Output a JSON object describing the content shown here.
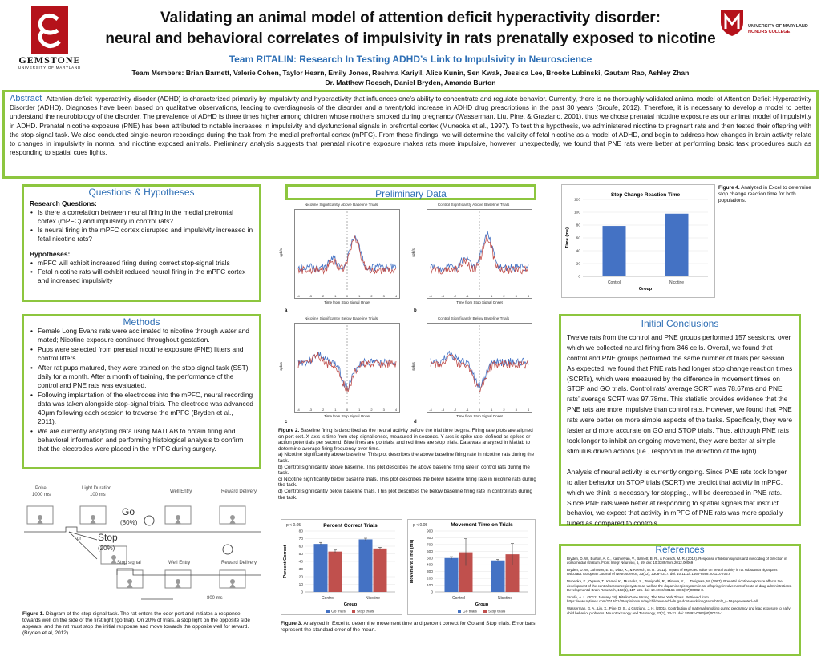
{
  "header": {
    "title_line1": "Validating an animal model of attention deficit hyperactivity disorder:",
    "title_line2": "neural and behavioral correlates of impulsivity in rats prenatally exposed to nicotine",
    "team": "Team RITALIN: Research In Testing ADHD’s Link to Impulsivity in Neuroscience",
    "members_line1": "Team Members: Brian Barnett, Valerie Cohen, Taylor Hearn, Emily Jones, Reshma Kariyil, Alice Kunin, Sen Kwak, Jessica Lee, Brooke Lubinski, Gautam Rao, Ashley Zhan",
    "members_line2": "Dr. Matthew Roesch, Daniel Bryden, Amanda Burton",
    "left_logo_text": "GEMSTONE",
    "left_logo_sub": "UNIVERSITY OF MARYLAND",
    "right_logo_line1": "UNIVERSITY OF MARYLAND",
    "right_logo_line2": "HONORS COLLEGE"
  },
  "abstract": {
    "label": "Abstract",
    "text": "Attention-deficit hyperactivity disoder (ADHD) is characterized primarily by impulsivity and hyperactivity that influences one’s ability to concentrate and regulate behavior. Currently, there is no thoroughly validated animal model of Attention Deficit Hyperactivity Disorder (ADHD). Diagnoses have been based on qualitative observations, leading to overdiagnosis of the disorder and a twentyfold increase in ADHD drug prescriptions in the past 30 years (Sroufe, 2012). Therefore, it is necessary to develop a model to better understand the neurobiology of the disorder. The prevalence of ADHD is three times higher among children whose mothers smoked during pregnancy (Wasserman, Liu, Pine, & Graziano, 2001), thus we chose prenatal nicotine exposure as our animal model of impulsivity in ADHD.  Prenatal nicotine exposure (PNE) has been attributed to notable increases in impulsivity and dysfunctional signals in prefrontal cortex (Muneoka et al., 1997). To test this hypothesis, we administered nicotine to pregnant rats and then tested their offspring with the stop-signal task. We also conducted single-neuron recordings during the task from the medial prefrontal cortex (mPFC).  From these findings, we will determine the validity of fetal nicotine as a model of ADHD, and begin to address how changes in brain activity relate to changes in impulsivity in normal and nicotine exposed animals. Preliminary analysis suggests that prenatal nicotine exposure makes rats more impulsive, however, unexpectedly, we found that PNE rats were better at performing basic task procedures such as responding to spatial cues lights."
  },
  "questions": {
    "heading": "Questions & Hypotheses",
    "rq_label": "Research Questions:",
    "rq_items": [
      "Is there a correlation between neural firing in the medial prefrontal cortex (mPFC) and impulsivity in control rats?",
      "Is neural firing in the mPFC cortex disrupted and impulsivity increased in fetal nicotine rats?"
    ],
    "hyp_label": "Hypotheses:",
    "hyp_items": [
      "mPFC will exhibit increased firing during correct stop-signal trials",
      "Fetal nicotine rats will exhibit reduced neural firing in the mPFC cortex and increased impulsivity"
    ]
  },
  "methods": {
    "heading": "Methods",
    "items": [
      "Female Long Evans rats were acclimated to nicotine through water and mated; Nicotine exposure continued throughout gestation.",
      "Pups were selected from prenatal nicotine exposure (PNE) litters and control litters",
      "After rat pups matured, they were trained on the stop-signal task (SST) daily for a month. After a month of training, the performance of the control and PNE rats was evaluated.",
      "Following implantation of the electrodes into the mPFC, neural recording data was taken alongside stop-signal trials. The electrode was advanced 40μm following each session to traverse the mPFC (Bryden et al., 2011).",
      "We are currently analyzing data using MATLAB to obtain firing and behavioral information and performing histological analysis to confirm that the electrodes were placed in the mPFC during surgery."
    ]
  },
  "figure1": {
    "labels_top": [
      "Poke",
      "Light Duration",
      "Well Entry",
      "Reward Delivery"
    ],
    "labels_top_sub": [
      "1000 ms",
      "100 ms"
    ],
    "go": "Go",
    "go_pct": "(80%)",
    "or": "or",
    "stop": "Stop",
    "stop_pct": "(20%)",
    "labels_bottom": [
      "Stop signal",
      "Well Entry",
      "Reward Delivery"
    ],
    "ms800": "800 ms",
    "caption_bold": "Figure 1.",
    "caption": " Diagram of the stop-signal task. The rat enters the odor port and initiates a response towards well on the side of the first light (go trial). On 20% of trials, a stop light on the opposite side appears, and the rat must stop the initial response and move towards the opposite well for reward. (Bryden et al, 2012)"
  },
  "preliminary": {
    "heading": "Preliminary Data",
    "panels": [
      {
        "letter": "a",
        "title": "Nicotine Significantly Above Baseline Trials",
        "xlabel": "Time from Stop Signal Onset",
        "ylabel": "spk/s"
      },
      {
        "letter": "b",
        "title": "Control Significantly Above Baseline Trials",
        "xlabel": "Time from Stop Signal Onset",
        "ylabel": "spk/s"
      },
      {
        "letter": "c",
        "title": "Nicotine Significantly Below Baseline Trials",
        "xlabel": "Time from Stop Signal Onset",
        "ylabel": "spk/s"
      },
      {
        "letter": "d",
        "title": "Control Significantly Below Baseline Trials",
        "xlabel": "Time from Stop Signal Onset",
        "ylabel": "spk/s"
      }
    ],
    "ticks_x": [
      "-4",
      "-3",
      "-2",
      "-1",
      "0",
      "1",
      "2",
      "3",
      "4"
    ],
    "fig2_caption_bold": "Figure 2.",
    "fig2_caption": " Baseline firing is described as the neural activity before the trial time begins. Firing rate plots are aligned on port exit. X-axis is time from stop-signal onset, measured in seconds. Y-axis is spike rate, defined as spikes or action potentials per second. Blue lines are go trials, and red lines are stop trials. Data was analyzed in Matlab to determine average firing frequency over time.",
    "fig2_items": [
      "a) Nicotine significantly above baseline. This plot describes the above baseline firing rate in nicotine rats during the task.",
      "b) Control significantly above baseline. This plot describes the above baseline firing rate in control rats during the task.",
      "c) Nicotine significantly below baseline trials. This plot describes the below baseline firing rate in nicotine rats during the task.",
      "d) Control significantly below baseline trials. This plot describes the below baseline firing rate in control rats during the task."
    ],
    "fig3_caption_bold": "Figure 3.",
    "fig3_caption": " Analyzed in Excel to determine movement time and percent correct for Go and Stop trials. Error bars represent the standard error of the mean."
  },
  "chart_data": [
    {
      "type": "bar",
      "title": "Stop Change Reaction Time",
      "xlabel": "Group",
      "ylabel": "Time (ms)",
      "categories": [
        "Control",
        "Nicotine"
      ],
      "values": [
        78.67,
        97.78
      ],
      "ylim": [
        0,
        120
      ],
      "yticks": [
        "0",
        "20",
        "40",
        "60",
        "80",
        "100",
        "120"
      ],
      "color": "#4472c4"
    },
    {
      "type": "bar",
      "title": "Percent Correct Trials",
      "annotation": "p < 0.05",
      "xlabel": "Group",
      "ylabel": "Percent Correct",
      "categories": [
        "Control",
        "Nicotine"
      ],
      "series": [
        {
          "name": "Go trials",
          "values": [
            63,
            69
          ],
          "errors": [
            2,
            1.5
          ],
          "color": "#4472c4"
        },
        {
          "name": "Stop trials",
          "values": [
            53,
            57
          ],
          "errors": [
            2,
            1.5
          ],
          "color": "#c0504d"
        }
      ],
      "ylim": [
        0,
        80
      ],
      "yticks": [
        "0",
        "10",
        "20",
        "30",
        "40",
        "50",
        "60",
        "70",
        "80"
      ]
    },
    {
      "type": "bar",
      "title": "Movement Time on Trials",
      "annotation": "p < 0.05",
      "xlabel": "Group",
      "ylabel": "Movement Time (ms)",
      "categories": [
        "Control",
        "Nicotine"
      ],
      "series": [
        {
          "name": "Go trials",
          "values": [
            500,
            465
          ],
          "errors": [
            20,
            15
          ],
          "color": "#4472c4"
        },
        {
          "name": "Stop trials",
          "values": [
            585,
            555
          ],
          "errors": [
            200,
            160
          ],
          "color": "#c0504d"
        }
      ],
      "ylim": [
        0,
        900
      ],
      "yticks": [
        "0",
        "100",
        "200",
        "300",
        "400",
        "500",
        "600",
        "700",
        "800",
        "900"
      ]
    }
  ],
  "fig4": {
    "caption_bold": "Figure 4.",
    "caption": " Analyzed in Excel to determine stop change reaction time for both populations."
  },
  "conclusions": {
    "heading": "Initial Conclusions",
    "para1": "Twelve rats from the control and PNE groups performed 157 sessions, over which we collected neural firing from 346 cells.  Overall, we found that control and PNE groups performed the same number of trials per session. As expected, we found that PNE rats had longer stop change reaction times (SCRTs), which were measured by the difference in movement times on STOP and GO trials. Control rats’ average SCRT was 78.67ms and PNE rats’ average SCRT was 97.78ms. This statistic provides evidence that the PNE rats are more impulsive than control rats. However, we found that PNE rats were better on more simple aspects of the tasks.  Specifically, they were faster and more accurate on GO and STOP trials. Thus, although PNE rats took longer to inhibit an ongoing movement, they were better at simple stimulus driven actions (i.e., respond in the direction of the light).",
    "para2": "Analysis of neural activity is currently ongoing. Since PNE rats took longer to alter behavior on STOP trials (SCRT) we predict that activity in mPFC, which we think is necessary for stopping., will be decreased in PNE rats. Since PNE rats were better at responding to spatial signals that instruct behavior, we expect that activity in mPFC of PNE rats was more spatially tuned as compared to controls."
  },
  "references": {
    "heading": "References",
    "items": [
      "Bryden, D. W., Burton, A. C., Kashtelyan, V., Barnett, B. R., & Roesch, M. R. (2012). Response inhibition signals and miscoding of direction in dorsomedial striatum. Front Integr Neurosci, 6, 69. doi: 10.3389/fnint.2012.00069",
      "Bryden, D. W., Johnson, E. E., Diao, X., & Roesch, M. R. (2011). Impact of expected value on neural activity in rat substantia nigra pars reticulata. European Journal of Neuroscience, 33(12), 2308-2317. doi: 10.1111/j.1460-9568.2011.07705.x",
      "Muneoka, K., Ogawa, T., Kamei, K., Muraoka, S., Tomiyoshi, R., Mimura, Y., ... Takigawa, M. (1997). Prenatal nicotine exposure affects the development of the central serotonergic system as well as the dopaminergic system in rat offspring: involvement of route of drug administrations. Developmental Brain Research, 102(1), 117-126. doi: 10.1016/S0165-3806(97)00092-8.",
      "Sroufe, A. L. (2012, January 28). Ritalin Gone Wrong. The New York Times. Retrieved from https://www.nytimes.com/2012/01/29/opinion/sunday/childrens-add-drugs-dont-work-long-term.html?_r=1&pagewanted=all",
      "Wasserman, G. A., Liu, X., Pine, D. S., & Graziano, J. H. (2001). Contribution of maternal smoking during pregnancy and lead exposure to early child behavior problems. Neurotoxicology and Teratology, 23(1), 13-21. doi: S0892-0362(00)00116-1"
    ]
  },
  "colors": {
    "accent_green": "#8dc63f",
    "heading_blue": "#2e6fb5",
    "go_blue": "#4472c4",
    "stop_red": "#c0504d",
    "logo_red": "#b5121b"
  }
}
